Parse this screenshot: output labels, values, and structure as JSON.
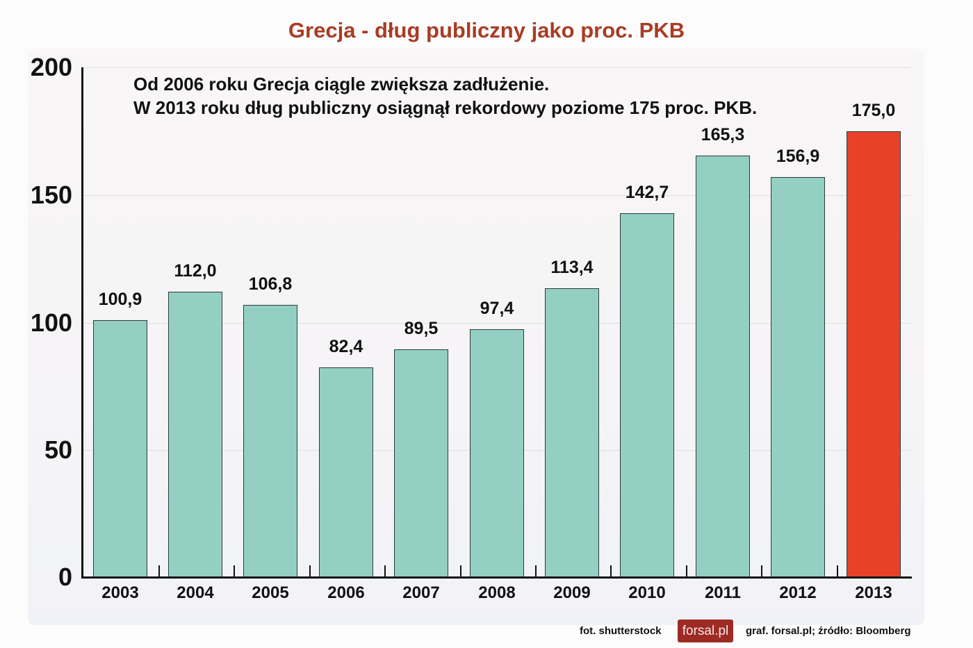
{
  "chart_data": {
    "type": "bar",
    "title": "Grecja - dług publiczny jako proc. PKB",
    "annotation": [
      "Od 2006 roku Grecja ciągle zwiększa zadłużenie.",
      "W 2013 roku dług publiczny osiągnął rekordowy poziome 175 proc. PKB."
    ],
    "categories": [
      "2003",
      "2004",
      "2005",
      "2006",
      "2007",
      "2008",
      "2009",
      "2010",
      "2011",
      "2012",
      "2013"
    ],
    "values": [
      100.9,
      112.0,
      106.8,
      82.4,
      89.5,
      97.4,
      113.4,
      142.7,
      165.3,
      156.9,
      175.0
    ],
    "value_labels": [
      "100,9",
      "112,0",
      "106,8",
      "82,4",
      "89,5",
      "97,4",
      "113,4",
      "142,7",
      "165,3",
      "156,9",
      "175,0"
    ],
    "xlabel": "",
    "ylabel": "",
    "ylim": [
      0,
      200
    ],
    "yticks": [
      "200",
      "150",
      "100",
      "50",
      "0"
    ],
    "grid": true,
    "colors": {
      "default_bar": "#94cfc3",
      "highlight_bar": "#e8412a",
      "title": "#a83c25"
    },
    "highlight_category": "2013"
  },
  "footer": {
    "photo_credit": "fot. shutterstock",
    "logo_text": "forsal.pl",
    "source": "graf. forsal.pl;  źródło: Bloomberg"
  }
}
